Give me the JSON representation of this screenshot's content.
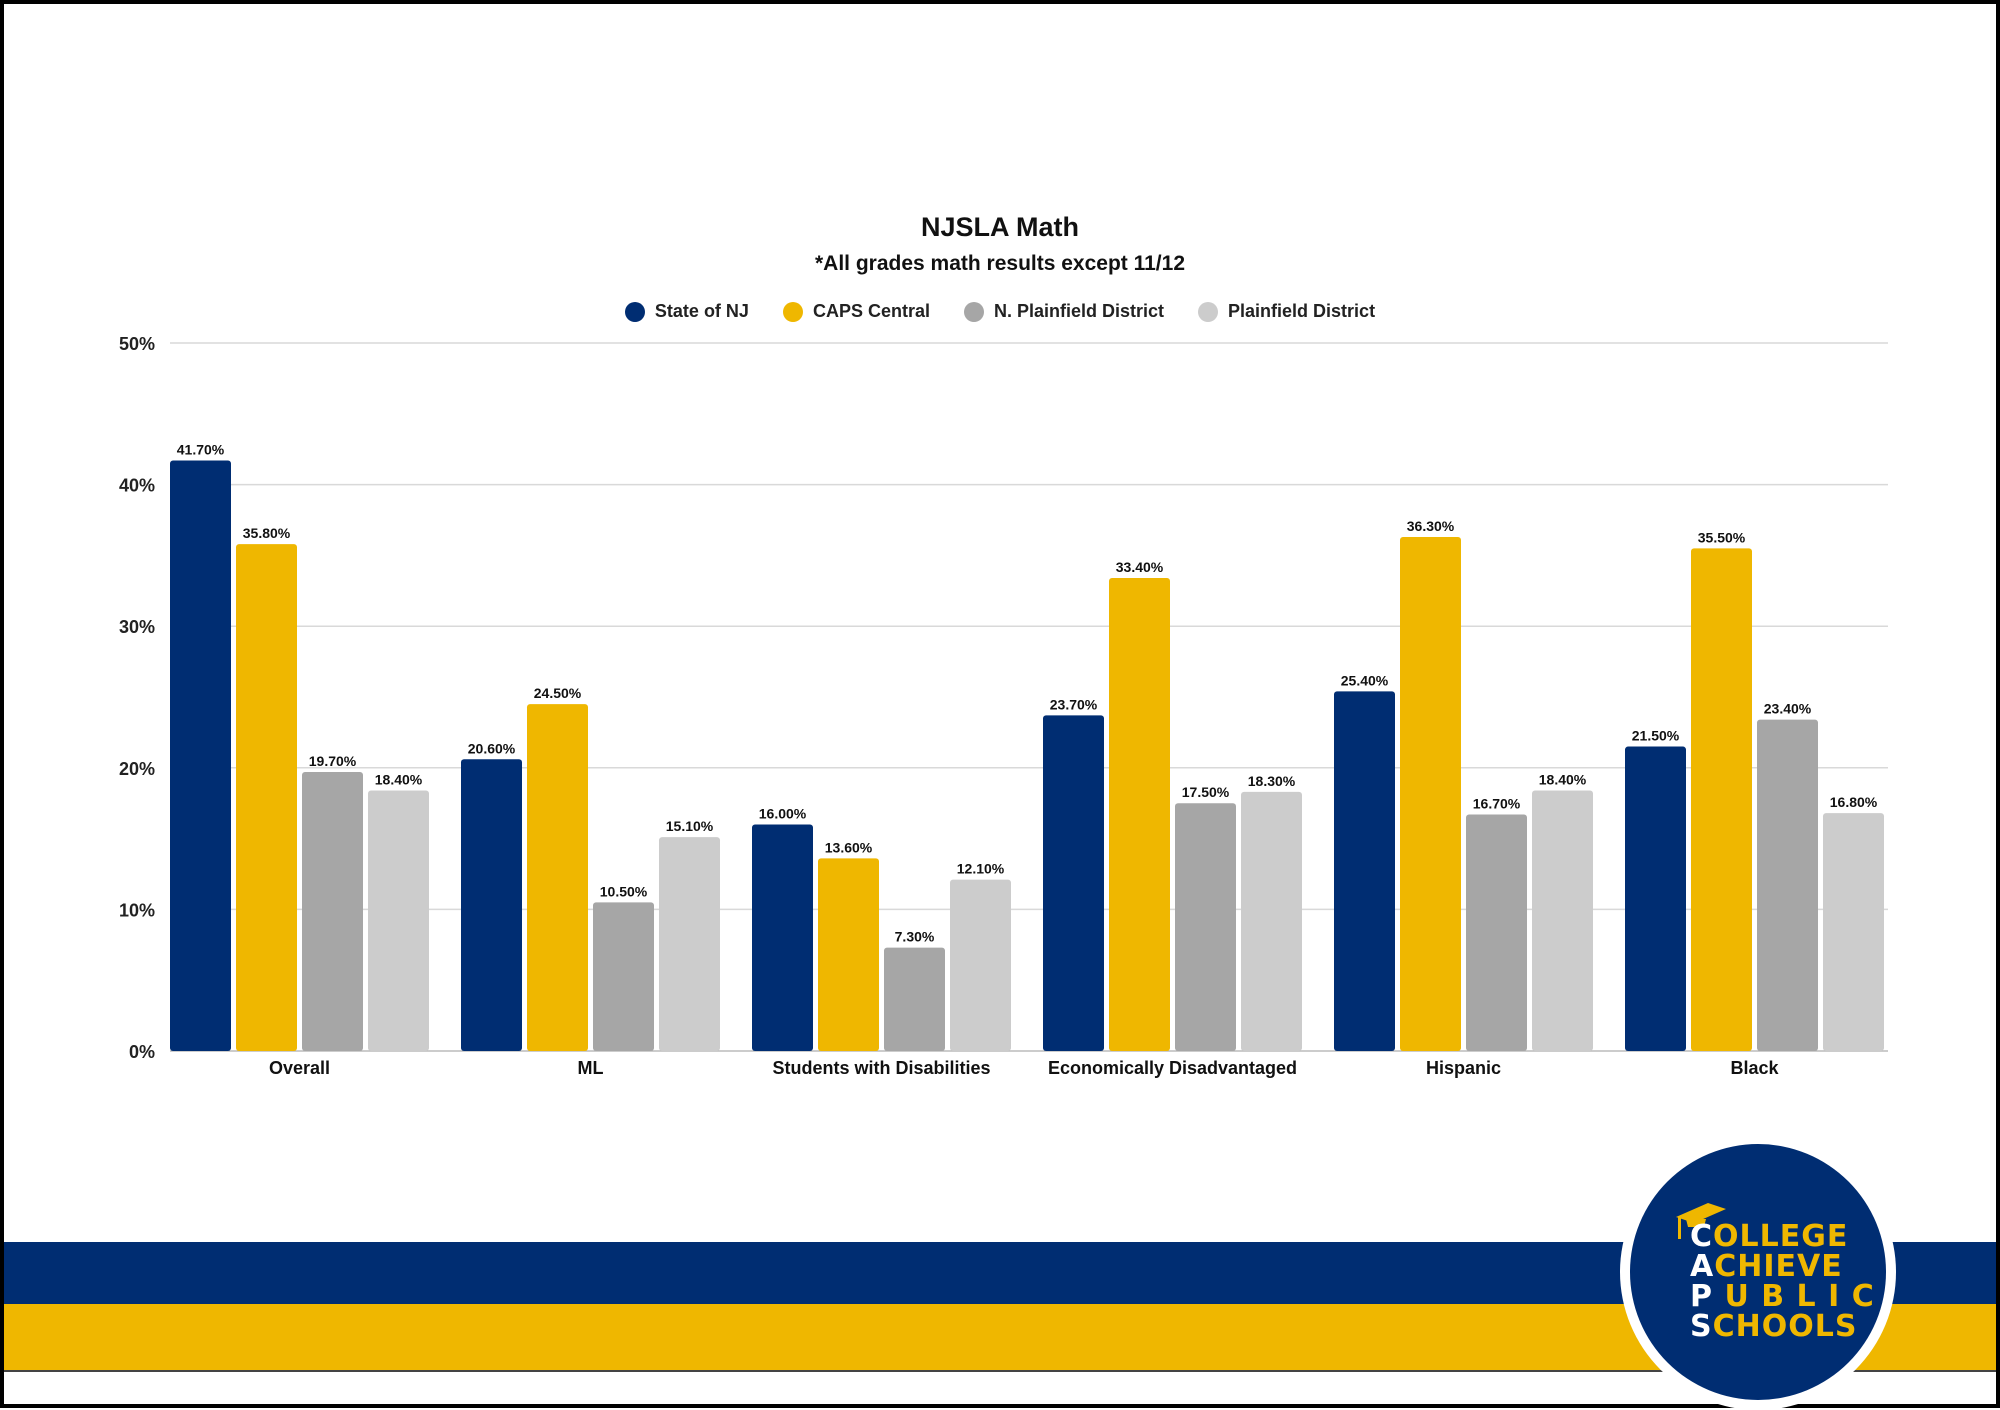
{
  "chart_data": {
    "type": "bar",
    "title": "NJSLA Math",
    "subtitle": "*All grades math results except 11/12",
    "xlabel": "",
    "ylabel": "",
    "ylim": [
      0,
      50
    ],
    "yticks": [
      0,
      10,
      20,
      30,
      40,
      50
    ],
    "ytick_labels": [
      "0%",
      "10%",
      "20%",
      "30%",
      "40%",
      "50%"
    ],
    "grid": true,
    "legend_position": "top-center",
    "categories": [
      "Overall",
      "ML",
      "Students with Disabilities",
      "Economically Disadvantaged",
      "Hispanic",
      "Black"
    ],
    "series": [
      {
        "name": "State of NJ",
        "color": "#002d72",
        "values": [
          41.7,
          20.6,
          16.0,
          23.7,
          25.4,
          21.5
        ],
        "labels": [
          "41.70%",
          "20.60%",
          "16.00%",
          "23.70%",
          "25.40%",
          "21.50%"
        ]
      },
      {
        "name": "CAPS Central",
        "color": "#efb700",
        "values": [
          35.8,
          24.5,
          13.6,
          33.4,
          36.3,
          35.5
        ],
        "labels": [
          "35.80%",
          "24.50%",
          "13.60%",
          "33.40%",
          "36.30%",
          "35.50%"
        ]
      },
      {
        "name": "N. Plainfield District",
        "color": "#a6a6a6",
        "values": [
          19.7,
          10.5,
          7.3,
          17.5,
          16.7,
          23.4
        ],
        "labels": [
          "19.70%",
          "10.50%",
          "7.30%",
          "17.50%",
          "16.70%",
          "23.40%"
        ]
      },
      {
        "name": "Plainfield District",
        "color": "#cccccc",
        "values": [
          18.4,
          15.1,
          12.1,
          18.3,
          18.4,
          16.8
        ],
        "labels": [
          "18.40%",
          "15.10%",
          "12.10%",
          "18.30%",
          "18.40%",
          "16.80%"
        ]
      }
    ]
  },
  "logo": {
    "lines": [
      "COLLEGE",
      "ACHIEVE",
      "PUBLIC",
      "SCHOOLS"
    ]
  }
}
